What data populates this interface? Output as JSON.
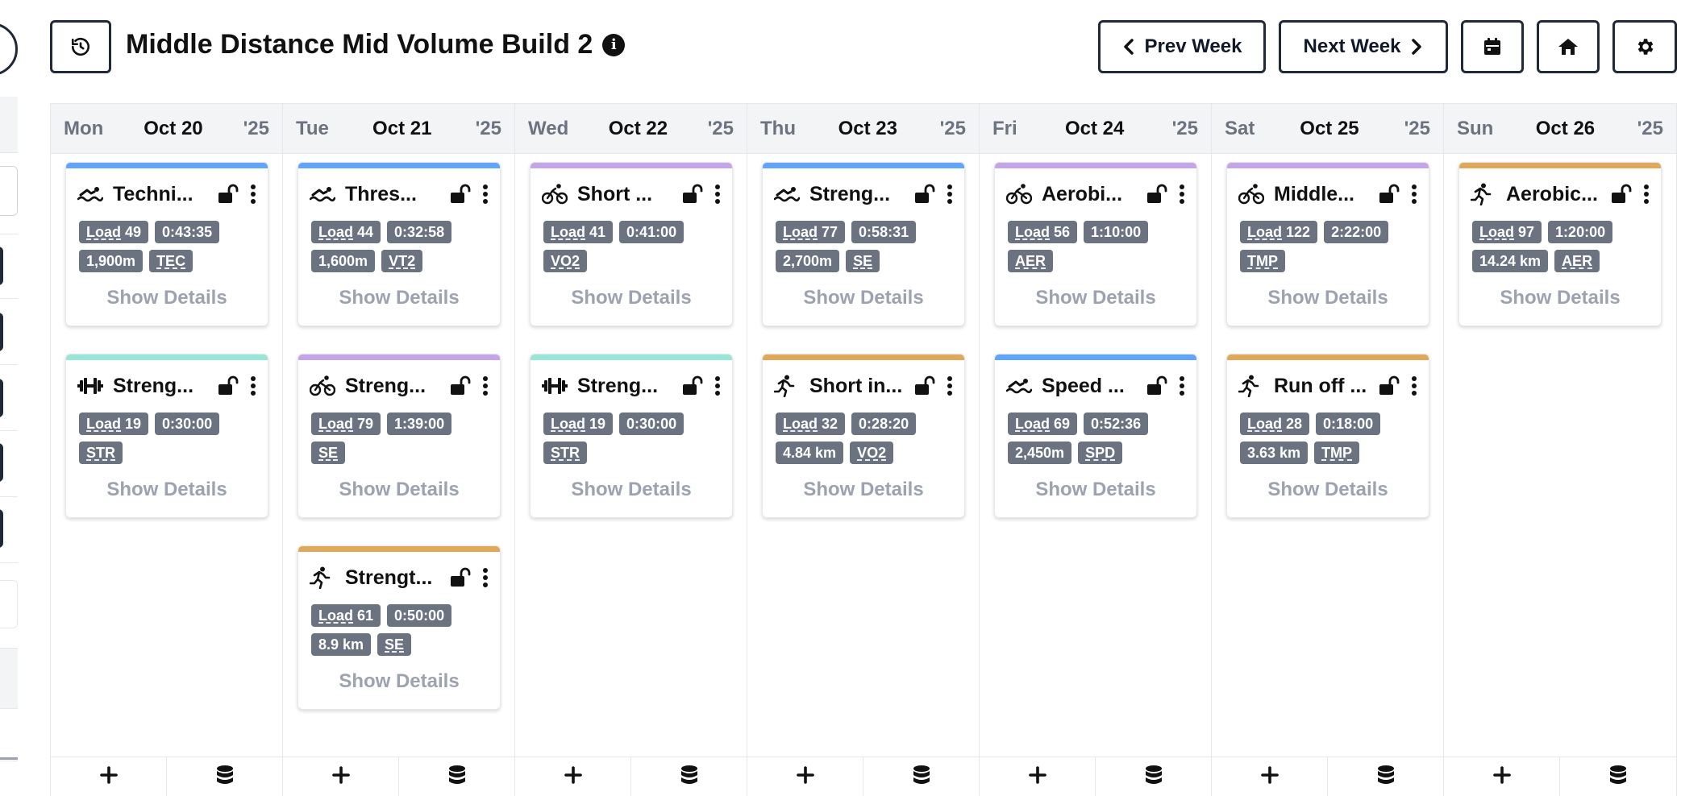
{
  "header": {
    "title": "Middle Distance Mid Volume Build 2",
    "info_icon": "i",
    "prev_week_label": "Prev Week",
    "next_week_label": "Next Week"
  },
  "colors": {
    "swim": "#60a5fa",
    "bike": "#c4a5e8",
    "strength": "#99e6d8",
    "run": "#e0a95a",
    "chip_bg": "#6b7280",
    "dark": "#1f2937"
  },
  "days": [
    {
      "weekday": "Mon",
      "date": "Oct 20",
      "year": "'25",
      "cards": [
        {
          "sport": "swim",
          "title": "Techni...",
          "chips": [
            {
              "label": "Load",
              "value": "49"
            },
            {
              "value": "0:43:35"
            },
            {
              "value": "1,900m"
            },
            {
              "value": "TEC",
              "ul": true
            }
          ],
          "details": "Show Details"
        },
        {
          "sport": "strength",
          "title": "Streng...",
          "chips": [
            {
              "label": "Load",
              "value": "19"
            },
            {
              "value": "0:30:00"
            },
            {
              "value": "STR",
              "ul": true
            }
          ],
          "details": "Show Details"
        }
      ]
    },
    {
      "weekday": "Tue",
      "date": "Oct 21",
      "year": "'25",
      "cards": [
        {
          "sport": "swim",
          "title": "Thres...",
          "chips": [
            {
              "label": "Load",
              "value": "44"
            },
            {
              "value": "0:32:58"
            },
            {
              "value": "1,600m"
            },
            {
              "value": "VT2",
              "ul": true
            }
          ],
          "details": "Show Details"
        },
        {
          "sport": "bike",
          "title": "Streng...",
          "chips": [
            {
              "label": "Load",
              "value": "79"
            },
            {
              "value": "1:39:00"
            },
            {
              "value": "SE",
              "ul": true
            }
          ],
          "details": "Show Details"
        },
        {
          "sport": "run",
          "title": "Strengt...",
          "chips": [
            {
              "label": "Load",
              "value": "61"
            },
            {
              "value": "0:50:00"
            },
            {
              "value": "8.9 km"
            },
            {
              "value": "SE",
              "ul": true
            }
          ],
          "details": "Show Details"
        }
      ]
    },
    {
      "weekday": "Wed",
      "date": "Oct 22",
      "year": "'25",
      "cards": [
        {
          "sport": "bike",
          "title": "Short ...",
          "chips": [
            {
              "label": "Load",
              "value": "41"
            },
            {
              "value": "0:41:00"
            },
            {
              "value": "VO2",
              "ul": true
            }
          ],
          "details": "Show Details"
        },
        {
          "sport": "strength",
          "title": "Streng...",
          "chips": [
            {
              "label": "Load",
              "value": "19"
            },
            {
              "value": "0:30:00"
            },
            {
              "value": "STR",
              "ul": true
            }
          ],
          "details": "Show Details"
        }
      ]
    },
    {
      "weekday": "Thu",
      "date": "Oct 23",
      "year": "'25",
      "cards": [
        {
          "sport": "swim",
          "title": "Streng...",
          "chips": [
            {
              "label": "Load",
              "value": "77"
            },
            {
              "value": "0:58:31"
            },
            {
              "value": "2,700m"
            },
            {
              "value": "SE",
              "ul": true
            }
          ],
          "details": "Show Details"
        },
        {
          "sport": "run",
          "title": "Short in...",
          "chips": [
            {
              "label": "Load",
              "value": "32"
            },
            {
              "value": "0:28:20"
            },
            {
              "value": "4.84 km"
            },
            {
              "value": "VO2",
              "ul": true
            }
          ],
          "details": "Show Details"
        }
      ]
    },
    {
      "weekday": "Fri",
      "date": "Oct 24",
      "year": "'25",
      "cards": [
        {
          "sport": "bike",
          "title": "Aerobi...",
          "chips": [
            {
              "label": "Load",
              "value": "56"
            },
            {
              "value": "1:10:00"
            },
            {
              "value": "AER",
              "ul": true
            }
          ],
          "details": "Show Details"
        },
        {
          "sport": "swim",
          "title": "Speed ...",
          "chips": [
            {
              "label": "Load",
              "value": "69"
            },
            {
              "value": "0:52:36"
            },
            {
              "value": "2,450m"
            },
            {
              "value": "SPD",
              "ul": true
            }
          ],
          "details": "Show Details"
        }
      ]
    },
    {
      "weekday": "Sat",
      "date": "Oct 25",
      "year": "'25",
      "cards": [
        {
          "sport": "bike",
          "title": "Middle...",
          "chips": [
            {
              "label": "Load",
              "value": "122"
            },
            {
              "value": "2:22:00"
            },
            {
              "value": "TMP",
              "ul": true
            }
          ],
          "details": "Show Details"
        },
        {
          "sport": "run",
          "title": "Run off ...",
          "chips": [
            {
              "label": "Load",
              "value": "28"
            },
            {
              "value": "0:18:00"
            },
            {
              "value": "3.63 km"
            },
            {
              "value": "TMP",
              "ul": true
            }
          ],
          "details": "Show Details"
        }
      ]
    },
    {
      "weekday": "Sun",
      "date": "Oct 26",
      "year": "'25",
      "cards": [
        {
          "sport": "run",
          "title": "Aerobic...",
          "chips": [
            {
              "label": "Load",
              "value": "97"
            },
            {
              "value": "1:20:00"
            },
            {
              "value": "14.24 km"
            },
            {
              "value": "AER",
              "ul": true
            }
          ],
          "details": "Show Details"
        }
      ]
    }
  ],
  "footer": {
    "add_icon": "plus-icon",
    "library_icon": "database-icon"
  }
}
